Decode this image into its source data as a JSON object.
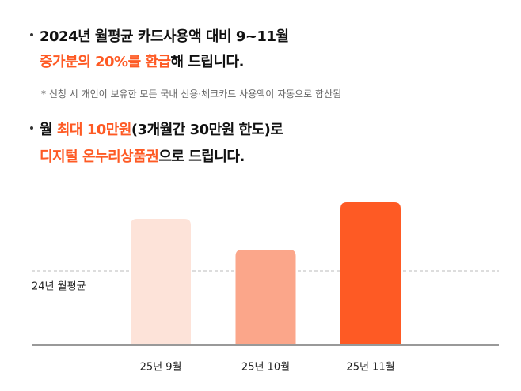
{
  "bullets": [
    {
      "lines": [
        [
          {
            "text": "2024년 월평균 카드사용액 대비 9~11월",
            "highlight": false
          }
        ],
        [
          {
            "text": "증가분의 20%를 환급",
            "highlight": true
          },
          {
            "text": "해 드립니다.",
            "highlight": false
          }
        ]
      ],
      "note": "* 신청 시 개인이 보유한 모든 국내 신용·체크카드 사용액이 자동으로 합산됨"
    },
    {
      "lines": [
        [
          {
            "text": "월 ",
            "highlight": false
          },
          {
            "text": "최대 10만원",
            "highlight": true
          },
          {
            "text": "(3개월간 30만원 한도)로",
            "highlight": false
          }
        ],
        [
          {
            "text": "디지털 온누리상품권",
            "highlight": true
          },
          {
            "text": "으로 드립니다.",
            "highlight": false
          }
        ]
      ]
    }
  ],
  "chart_data": {
    "type": "bar",
    "categories": [
      "25년 9월",
      "25년 10월",
      "25년 11월"
    ],
    "values": [
      160,
      121,
      181
    ],
    "colors": [
      "#fde3d9",
      "#fba68a",
      "#fe5a24"
    ],
    "ylim": [
      0,
      200
    ],
    "reference": {
      "label": "24년 월평균",
      "value": 94
    }
  }
}
